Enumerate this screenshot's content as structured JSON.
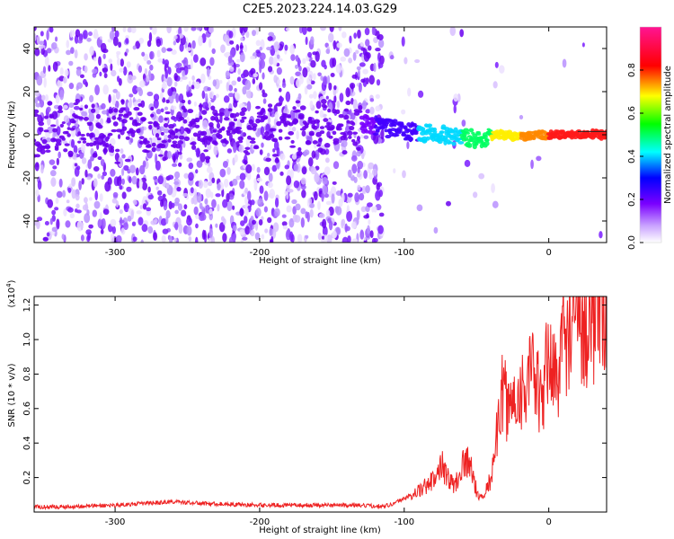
{
  "title": "C2E5.2023.224.14.03.G29",
  "chart_data": [
    {
      "type": "heatmap",
      "xlabel": "Height of straight line (km)",
      "ylabel": "Frequency (Hz)",
      "xlim": [
        -356,
        40
      ],
      "ylim": [
        -50,
        50
      ],
      "xticks": [
        -300,
        -200,
        -100,
        0
      ],
      "yticks": [
        -40,
        -20,
        0,
        20,
        40
      ],
      "colorbar": {
        "label": "Normalized spectral amplitude",
        "range": [
          0,
          1
        ],
        "ticks": [
          "0.0",
          "0.2",
          "0.4",
          "0.6",
          "0.8"
        ],
        "colormap": [
          "#ffffff",
          "#8a2be2",
          "#0000ff",
          "#00ffff",
          "#00ff00",
          "#ffff00",
          "#ff0000",
          "#ff1493"
        ]
      },
      "ridge": {
        "description_points_x": [
          -130,
          -110,
          -90,
          -70,
          -50,
          -35,
          -20,
          0,
          20,
          40
        ],
        "description_points_y": [
          5,
          3,
          1,
          0,
          -2,
          0,
          -1,
          0,
          0,
          0
        ]
      }
    },
    {
      "type": "line",
      "xlabel": "Height of straight line (km)",
      "ylabel": "SNR (10 * v/v)",
      "exponent_label": "(x10",
      "exponent_power": "4",
      "exponent_close": ")",
      "xlim": [
        -356,
        40
      ],
      "ylim": [
        0,
        1.25
      ],
      "xticks": [
        -300,
        -200,
        -100,
        0
      ],
      "yticks": [
        "0.2",
        "0.4",
        "0.6",
        "0.8",
        "1.0",
        "1.2"
      ],
      "color": "#ee2222",
      "series": [
        {
          "x": [
            -356,
            -340,
            -320,
            -300,
            -280,
            -260,
            -240,
            -220,
            -200,
            -180,
            -160,
            -140,
            -120,
            -110,
            -100,
            -90,
            -80,
            -75,
            -70,
            -65,
            -60,
            -55,
            -50,
            -45,
            -40,
            -35,
            -32,
            -28,
            -24,
            -20,
            -15,
            -10,
            -5,
            0,
            5,
            10,
            15,
            20,
            25,
            30,
            40
          ],
          "y": [
            0.03,
            0.03,
            0.035,
            0.04,
            0.05,
            0.06,
            0.05,
            0.045,
            0.04,
            0.04,
            0.04,
            0.04,
            0.035,
            0.04,
            0.08,
            0.12,
            0.18,
            0.3,
            0.2,
            0.15,
            0.28,
            0.3,
            0.12,
            0.08,
            0.2,
            0.5,
            0.7,
            0.6,
            0.65,
            0.7,
            0.75,
            0.8,
            0.6,
            0.95,
            0.75,
            1.0,
            1.05,
            1.1,
            1.08,
            1.12,
            1.15
          ]
        }
      ]
    }
  ]
}
